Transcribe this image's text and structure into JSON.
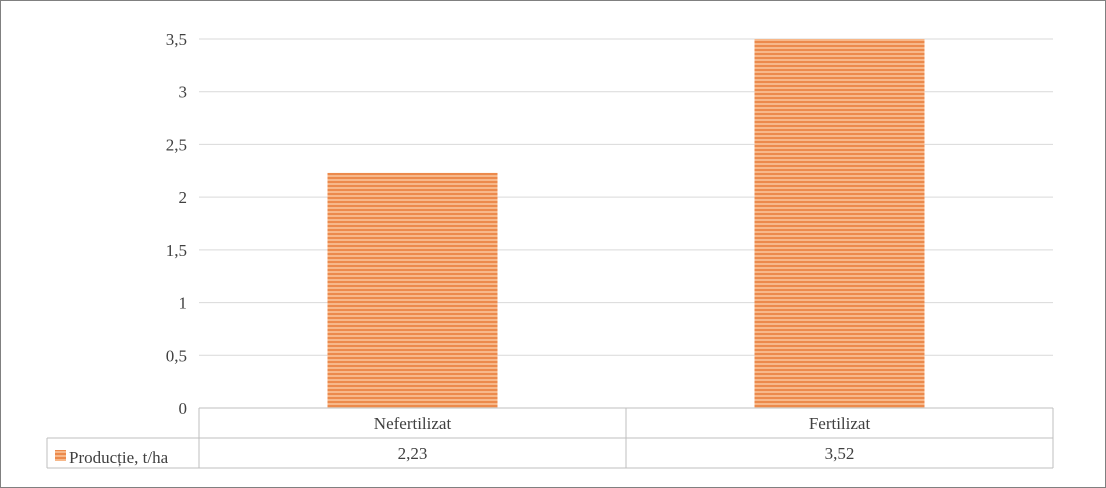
{
  "chart_data": {
    "type": "bar",
    "categories": [
      "Nefertilizat",
      "Fertilizat"
    ],
    "series": [
      {
        "name": "Producție, t/ha",
        "values": [
          2.23,
          3.52
        ]
      }
    ],
    "ylim": [
      0,
      3.5
    ],
    "yticks": [
      "0",
      "0,5",
      "1",
      "1,5",
      "2",
      "2,5",
      "3",
      "3,5"
    ],
    "data_table": {
      "values": [
        "2,23",
        "3,52"
      ]
    },
    "grid": true,
    "legend": "data-table",
    "colors": {
      "bar": "#f4a36a",
      "bar_stripe": "#e8783a",
      "grid": "#d9d9d9",
      "axis": "#bfbfbf",
      "text": "#404040"
    }
  }
}
